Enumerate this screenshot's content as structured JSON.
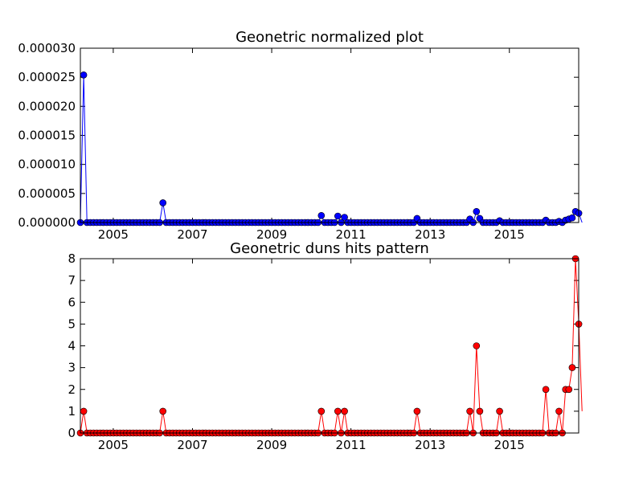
{
  "chart_data": [
    {
      "type": "line",
      "title": "Geonetric normalized plot",
      "xlabel": "",
      "ylabel": "",
      "xlim": [
        2004.17,
        2016.75
      ],
      "ylim": [
        0,
        3e-05
      ],
      "xticks": [
        2005,
        2007,
        2009,
        2011,
        2013,
        2015
      ],
      "xtick_labels": [
        "2005",
        "2007",
        "2009",
        "2011",
        "2013",
        "2015"
      ],
      "yticks": [
        0,
        5e-06,
        1e-05,
        1.5e-05,
        2e-05,
        2.5e-05,
        3e-05
      ],
      "ytick_labels": [
        "0.000000",
        "0.000005",
        "0.000010",
        "0.000015",
        "0.000020",
        "0.000025",
        "0.000030"
      ],
      "x_start": 2004.17,
      "x_step": 0.08333,
      "series": [
        {
          "color": "#0000ff",
          "values": [
            0,
            2.54e-05,
            0,
            0,
            0,
            0,
            0,
            0,
            0,
            0,
            0,
            0,
            0,
            0,
            0,
            0,
            0,
            0,
            0,
            0,
            0,
            0,
            0,
            0,
            0,
            3.4e-06,
            0,
            0,
            0,
            0,
            0,
            0,
            0,
            0,
            0,
            0,
            0,
            0,
            0,
            0,
            0,
            0,
            0,
            0,
            0,
            0,
            0,
            0,
            0,
            0,
            0,
            0,
            0,
            0,
            0,
            0,
            0,
            0,
            0,
            0,
            0,
            0,
            0,
            0,
            0,
            0,
            0,
            0,
            0,
            0,
            0,
            0,
            0,
            1.2e-06,
            0,
            0,
            0,
            0,
            1.1e-06,
            0,
            9e-07,
            0,
            0,
            0,
            0,
            0,
            0,
            0,
            0,
            0,
            0,
            0,
            0,
            0,
            0,
            0,
            0,
            0,
            0,
            0,
            0,
            0,
            7e-07,
            0,
            0,
            0,
            0,
            0,
            0,
            0,
            0,
            0,
            0,
            0,
            0,
            0,
            0,
            0,
            6e-07,
            0,
            1.9e-06,
            7e-07,
            0,
            0,
            0,
            0,
            0,
            3e-07,
            0,
            0,
            0,
            0,
            0,
            0,
            0,
            0,
            0,
            0,
            0,
            0,
            0,
            4e-07,
            0,
            0,
            0,
            2e-07,
            0,
            4e-07,
            6e-07,
            8e-07,
            1.9e-06,
            1.6e-06,
            0
          ]
        }
      ]
    },
    {
      "type": "line",
      "title": "Geonetric duns hits pattern",
      "xlabel": "",
      "ylabel": "",
      "xlim": [
        2004.17,
        2016.75
      ],
      "ylim": [
        0,
        8
      ],
      "xticks": [
        2005,
        2007,
        2009,
        2011,
        2013,
        2015
      ],
      "xtick_labels": [
        "2005",
        "2007",
        "2009",
        "2011",
        "2013",
        "2015"
      ],
      "yticks": [
        0,
        1,
        2,
        3,
        4,
        5,
        6,
        7,
        8
      ],
      "ytick_labels": [
        "0",
        "1",
        "2",
        "3",
        "4",
        "5",
        "6",
        "7",
        "8"
      ],
      "x_start": 2004.17,
      "x_step": 0.08333,
      "series": [
        {
          "color": "#ff0000",
          "values": [
            0,
            1,
            0,
            0,
            0,
            0,
            0,
            0,
            0,
            0,
            0,
            0,
            0,
            0,
            0,
            0,
            0,
            0,
            0,
            0,
            0,
            0,
            0,
            0,
            0,
            1,
            0,
            0,
            0,
            0,
            0,
            0,
            0,
            0,
            0,
            0,
            0,
            0,
            0,
            0,
            0,
            0,
            0,
            0,
            0,
            0,
            0,
            0,
            0,
            0,
            0,
            0,
            0,
            0,
            0,
            0,
            0,
            0,
            0,
            0,
            0,
            0,
            0,
            0,
            0,
            0,
            0,
            0,
            0,
            0,
            0,
            0,
            0,
            1,
            0,
            0,
            0,
            0,
            1,
            0,
            1,
            0,
            0,
            0,
            0,
            0,
            0,
            0,
            0,
            0,
            0,
            0,
            0,
            0,
            0,
            0,
            0,
            0,
            0,
            0,
            0,
            0,
            1,
            0,
            0,
            0,
            0,
            0,
            0,
            0,
            0,
            0,
            0,
            0,
            0,
            0,
            0,
            0,
            1,
            0,
            4,
            1,
            0,
            0,
            0,
            0,
            0,
            1,
            0,
            0,
            0,
            0,
            0,
            0,
            0,
            0,
            0,
            0,
            0,
            0,
            0,
            2,
            0,
            0,
            0,
            1,
            0,
            2,
            2,
            3,
            8,
            5,
            1
          ]
        }
      ]
    }
  ]
}
